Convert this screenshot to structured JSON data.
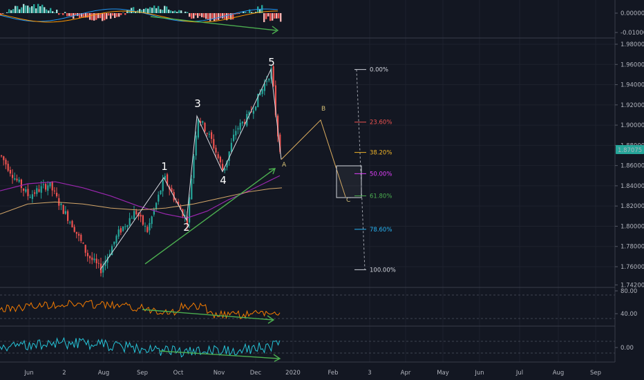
{
  "colors": {
    "background": "#131722",
    "up": "#26a69a",
    "down": "#ef5350",
    "ma_fast": "#9c27b0",
    "ma_slow": "#d6a86a",
    "divergence": "#4caf50",
    "rsi": "#f57c00",
    "osc": "#26c6da",
    "wave": "#d8dae0",
    "abc": "#e0b060"
  },
  "x_axis_labels": [
    "Jun",
    "2",
    "Aug",
    "Sep",
    "Oct",
    "Nov",
    "Dec",
    "2020",
    "Feb",
    "3",
    "Apr",
    "May",
    "Jun",
    "Jul",
    "Aug",
    "Sep"
  ],
  "macd_axis": [
    "0.00000",
    "-0.01000"
  ],
  "price_axis": [
    "1.98000",
    "1.96000",
    "1.94000",
    "1.92000",
    "1.90000",
    "1.88000",
    "1.86000",
    "1.84000",
    "1.82000",
    "1.80000",
    "1.78000",
    "1.76000",
    "1.74200"
  ],
  "current_price": "1.87075",
  "rsi_axis": [
    "80.00",
    "40.00"
  ],
  "osc_axis": [
    "0.00"
  ],
  "elliott_waves": [
    "1",
    "2",
    "3",
    "4",
    "5"
  ],
  "correction_labels": [
    "A",
    "B",
    "C"
  ],
  "fib_levels": [
    {
      "label": "0.00%",
      "color": "#d1d4dc"
    },
    {
      "label": "23.60%",
      "color": "#ef5350"
    },
    {
      "label": "38.20%",
      "color": "#f0b429"
    },
    {
      "label": "50.00%",
      "color": "#e040fb"
    },
    {
      "label": "61.80%",
      "color": "#4caf50"
    },
    {
      "label": "78.60%",
      "color": "#29b6f6"
    },
    {
      "label": "100.00%",
      "color": "#d1d4dc"
    }
  ],
  "chart_data": {
    "type": "candlestick",
    "price_range": [
      1.742,
      1.985
    ],
    "elliott_wave_points": [
      1.757,
      1.848,
      1.806,
      1.909,
      1.854,
      1.955,
      1.866
    ],
    "abc_projection": [
      1.866,
      1.905,
      1.829
    ],
    "fib_prices": [
      1.955,
      1.903,
      1.873,
      1.852,
      1.83,
      1.797,
      1.757
    ]
  }
}
